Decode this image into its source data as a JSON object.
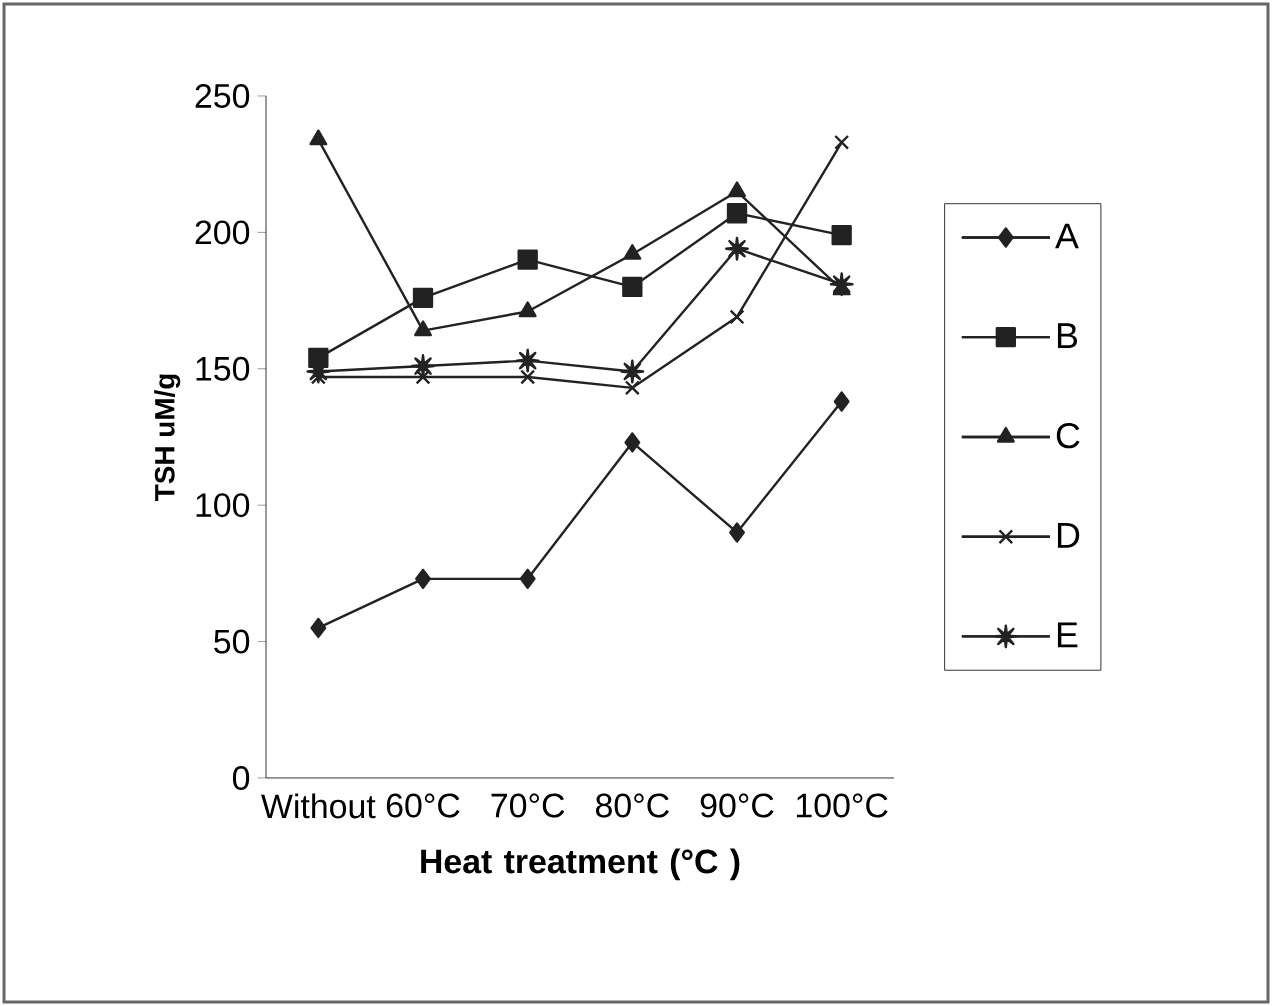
{
  "chart_data": {
    "type": "line",
    "xlabel": "Heat treatment (°C )",
    "ylabel": "TSH uM/g",
    "categories": [
      "Without",
      "60°C",
      "70°C",
      "80°C",
      "90°C",
      "100°C"
    ],
    "ylim": [
      0,
      250
    ],
    "yticks": [
      0,
      50,
      100,
      150,
      200,
      250
    ],
    "legend": "right",
    "grid": false,
    "line_style": "solid",
    "series": [
      {
        "name": "A",
        "color": "#222222",
        "marker": "diamond",
        "values": [
          55,
          73,
          73,
          123,
          90,
          138
        ]
      },
      {
        "name": "B",
        "color": "#222222",
        "marker": "square",
        "values": [
          154,
          176,
          190,
          180,
          207,
          199
        ]
      },
      {
        "name": "C",
        "color": "#222222",
        "marker": "triangle",
        "values": [
          234,
          164,
          171,
          192,
          215,
          179
        ]
      },
      {
        "name": "D",
        "color": "#222222",
        "marker": "cross",
        "values": [
          147,
          147,
          147,
          143,
          169,
          233
        ]
      },
      {
        "name": "E",
        "color": "#222222",
        "marker": "star",
        "values": [
          149,
          151,
          153,
          149,
          194,
          181
        ]
      }
    ]
  }
}
